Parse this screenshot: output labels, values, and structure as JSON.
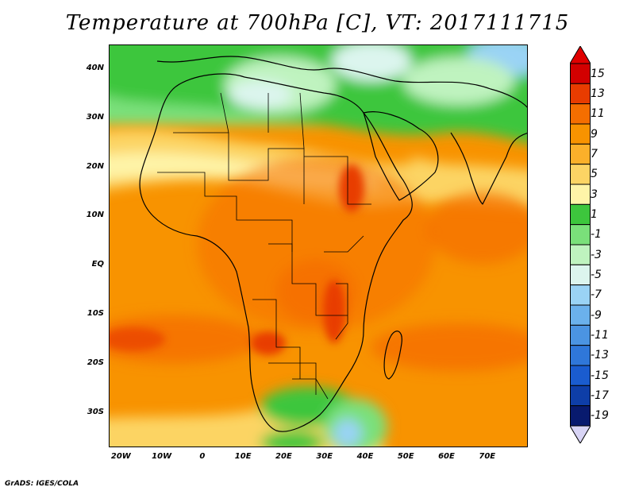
{
  "title": "Temperature at 700hPa [C], VT: 2017111715",
  "credit": "GrADS: IGES/COLA",
  "map": {
    "lon_range": [
      -23,
      80
    ],
    "lat_range": [
      -37,
      45
    ],
    "lat_ticks": [
      {
        "value": 40,
        "label": "40N"
      },
      {
        "value": 30,
        "label": "30N"
      },
      {
        "value": 20,
        "label": "20N"
      },
      {
        "value": 10,
        "label": "10N"
      },
      {
        "value": 0,
        "label": "EQ"
      },
      {
        "value": -10,
        "label": "10S"
      },
      {
        "value": -20,
        "label": "20S"
      },
      {
        "value": -30,
        "label": "30S"
      }
    ],
    "lon_ticks": [
      {
        "value": -20,
        "label": "20W"
      },
      {
        "value": -10,
        "label": "10W"
      },
      {
        "value": 0,
        "label": "0"
      },
      {
        "value": 10,
        "label": "10E"
      },
      {
        "value": 20,
        "label": "20E"
      },
      {
        "value": 30,
        "label": "30E"
      },
      {
        "value": 40,
        "label": "40E"
      },
      {
        "value": 50,
        "label": "50E"
      },
      {
        "value": 60,
        "label": "60E"
      },
      {
        "value": 70,
        "label": "70E"
      }
    ]
  },
  "colorbar": {
    "levels": [
      {
        "label": "15",
        "color": "#d20000"
      },
      {
        "label": "13",
        "color": "#e83c00"
      },
      {
        "label": "11",
        "color": "#f56e00"
      },
      {
        "label": "9",
        "color": "#f89300"
      },
      {
        "label": "7",
        "color": "#fbb02a"
      },
      {
        "label": "5",
        "color": "#fcd464"
      },
      {
        "label": "3",
        "color": "#fef4a8"
      },
      {
        "label": "1",
        "color": "#3dc63d"
      },
      {
        "label": "-1",
        "color": "#7ae07a"
      },
      {
        "label": "-3",
        "color": "#bff3bf"
      },
      {
        "label": "-5",
        "color": "#dcf5ee"
      },
      {
        "label": "-7",
        "color": "#9ad3f5"
      },
      {
        "label": "-9",
        "color": "#6bb1ec"
      },
      {
        "label": "-11",
        "color": "#4b94e2"
      },
      {
        "label": "-13",
        "color": "#2f77d9"
      },
      {
        "label": "-15",
        "color": "#1a5ccf"
      },
      {
        "label": "-17",
        "color": "#0e3ea8"
      },
      {
        "label": "-19",
        "color": "#081a6e"
      }
    ],
    "top_color": "#e00000",
    "bottom_color": "#d8d4f5"
  }
}
